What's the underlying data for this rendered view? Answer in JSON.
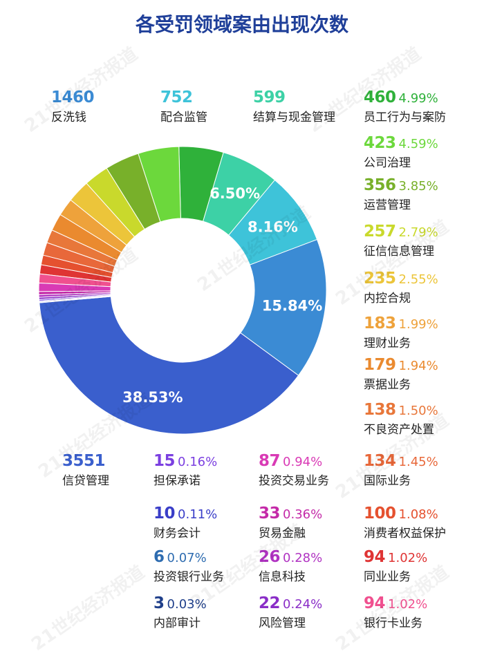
{
  "title": "各受罚领域案由出现次数",
  "watermark": "21世纪经济报道",
  "chart_data": {
    "type": "pie",
    "title": "各受罚领域案由出现次数",
    "series": [
      {
        "label": "信贷管理",
        "value": 3551,
        "percent": "38.53%",
        "color": "#3a5fcd"
      },
      {
        "label": "反洗钱",
        "value": 1460,
        "percent": "15.84%",
        "color": "#3b8bd4"
      },
      {
        "label": "配合监管",
        "value": 752,
        "percent": "8.16%",
        "color": "#3ec3d9"
      },
      {
        "label": "结算与现金管理",
        "value": 599,
        "percent": "6.50%",
        "color": "#3dd1a6"
      },
      {
        "label": "员工行为与案防",
        "value": 460,
        "percent": "4.99%",
        "color": "#2fb13a"
      },
      {
        "label": "公司治理",
        "value": 423,
        "percent": "4.59%",
        "color": "#6cd83c"
      },
      {
        "label": "运营管理",
        "value": 356,
        "percent": "3.85%",
        "color": "#78b02a"
      },
      {
        "label": "征信信息管理",
        "value": 257,
        "percent": "2.79%",
        "color": "#c9d92c"
      },
      {
        "label": "内控合规",
        "value": 235,
        "percent": "2.55%",
        "color": "#ecc53a"
      },
      {
        "label": "理财业务",
        "value": 183,
        "percent": "1.99%",
        "color": "#eea23b"
      },
      {
        "label": "票据业务",
        "value": 179,
        "percent": "1.94%",
        "color": "#ea8a2f"
      },
      {
        "label": "不良资产处置",
        "value": 138,
        "percent": "1.50%",
        "color": "#e8773a"
      },
      {
        "label": "国际业务",
        "value": 134,
        "percent": "1.45%",
        "color": "#e8683a"
      },
      {
        "label": "消费者权益保护",
        "value": 100,
        "percent": "1.08%",
        "color": "#e5512f"
      },
      {
        "label": "同业业务",
        "value": 94,
        "percent": "1.02%",
        "color": "#df3434"
      },
      {
        "label": "银行卡业务",
        "value": 94,
        "percent": "1.02%",
        "color": "#f0508f"
      },
      {
        "label": "投资交易业务",
        "value": 87,
        "percent": "0.94%",
        "color": "#d93ab5"
      },
      {
        "label": "贸易金融",
        "value": 33,
        "percent": "0.36%",
        "color": "#c42aa8"
      },
      {
        "label": "信息科技",
        "value": 26,
        "percent": "0.28%",
        "color": "#b033c2"
      },
      {
        "label": "风险管理",
        "value": 22,
        "percent": "0.24%",
        "color": "#8a2ec7"
      },
      {
        "label": "担保承诺",
        "value": 15,
        "percent": "0.16%",
        "color": "#7b3fe0"
      },
      {
        "label": "财务会计",
        "value": 10,
        "percent": "0.11%",
        "color": "#3a3ec8"
      },
      {
        "label": "投资银行业务",
        "value": 6,
        "percent": "0.07%",
        "color": "#2e6cb0"
      },
      {
        "label": "内部审计",
        "value": 3,
        "percent": "0.03%",
        "color": "#1f3f8a"
      }
    ]
  }
}
